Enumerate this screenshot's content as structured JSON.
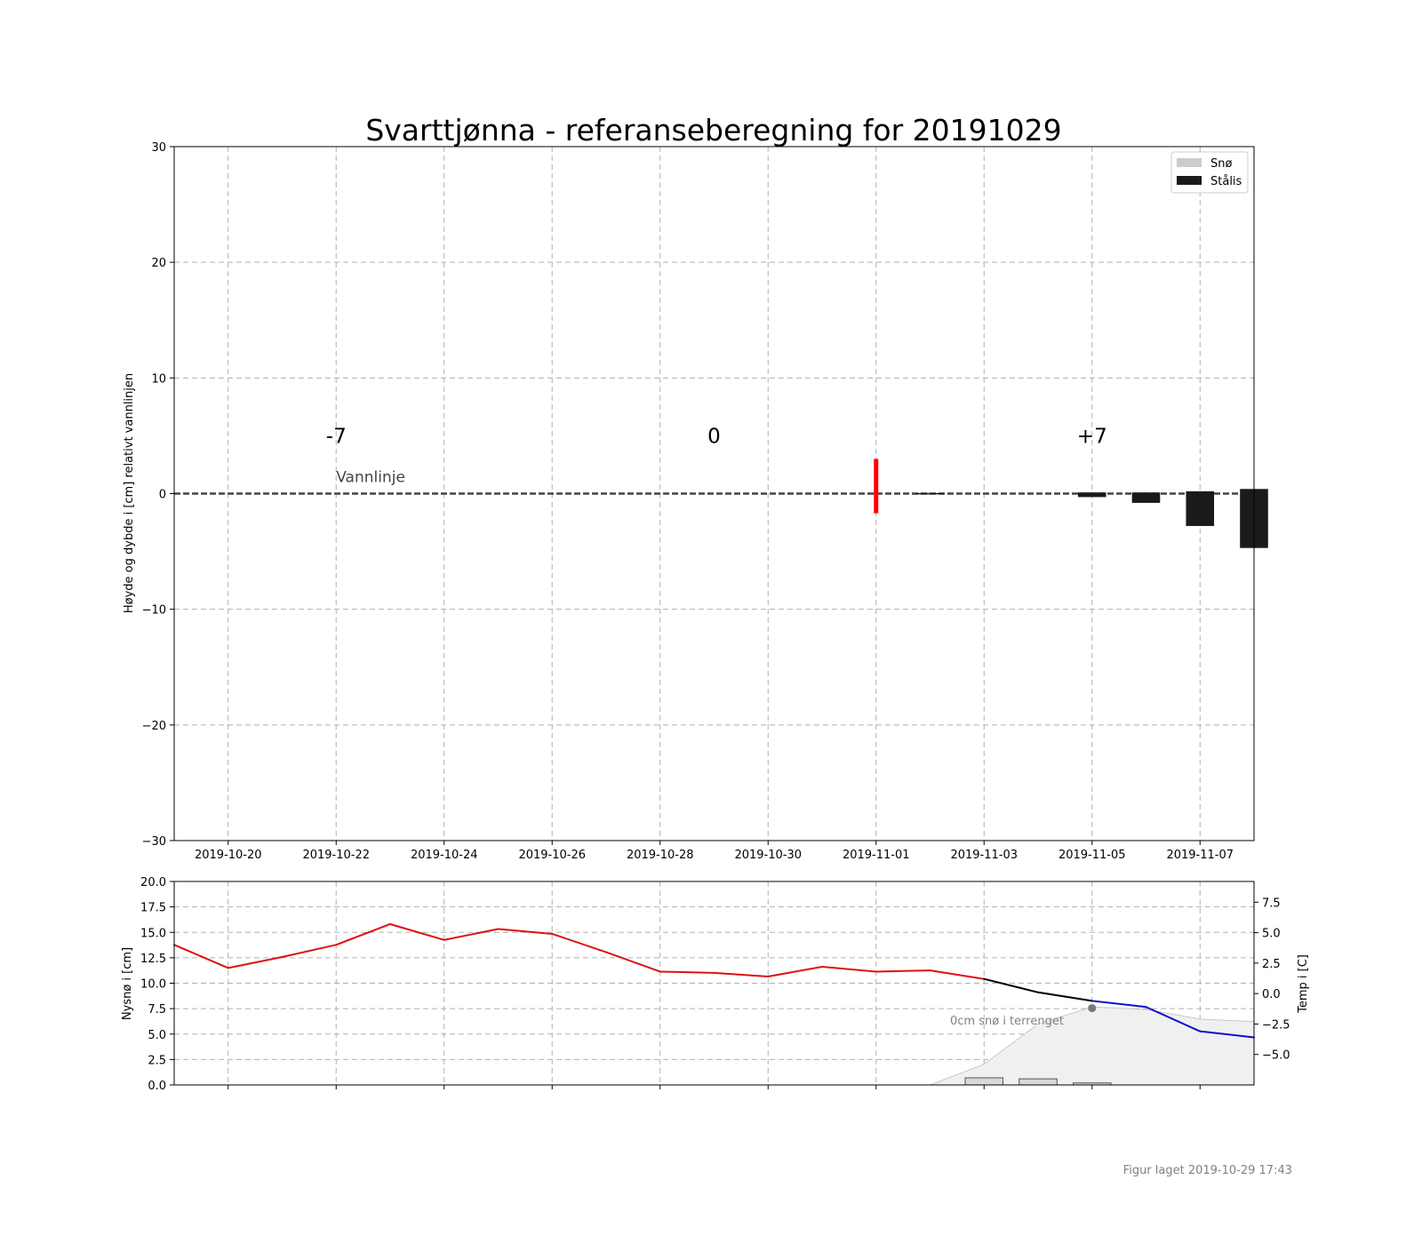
{
  "title": "Svarttjønna - referanseberegning for 20191029",
  "footer": "Figur laget 2019-10-29 17:43",
  "colors": {
    "snow": "#cccccc",
    "ice": "#1a1a1a",
    "today_marker": "#ff0000",
    "temp_observed": "#dd1111",
    "temp_forecast_warm": "#000000",
    "temp_forecast_cold": "#1010cc",
    "terrain_snow_fill": "#f0f0f0",
    "grid": "#b0b0b0"
  },
  "chart_data": [
    {
      "type": "bar",
      "ylabel": "Høyde og dybde i [cm] relativt vannlinjen",
      "ylim": [
        -30,
        30
      ],
      "yticks": [
        30,
        20,
        10,
        0,
        -10,
        -20,
        -30
      ],
      "ytick_labels": [
        "30",
        "20",
        "10",
        "0",
        "−10",
        "−20",
        "−30"
      ],
      "xlim": [
        "2019-10-19",
        "2019-11-08"
      ],
      "xticks": [
        "2019-10-20",
        "2019-10-22",
        "2019-10-24",
        "2019-10-26",
        "2019-10-28",
        "2019-10-30",
        "2019-11-01",
        "2019-11-03",
        "2019-11-05",
        "2019-11-07"
      ],
      "grid": true,
      "legend_position": "top-right",
      "legend": [
        {
          "name": "Snø",
          "color": "#cccccc"
        },
        {
          "name": "Stålis",
          "color": "#1a1a1a"
        }
      ],
      "waterline": {
        "y": 0,
        "label": "Vannlinje",
        "label_x": "2019-10-22"
      },
      "day_markers": [
        {
          "label": "-7",
          "x": "2019-10-22"
        },
        {
          "label": "0",
          "x": "2019-10-29"
        },
        {
          "label": "+7",
          "x": "2019-11-05"
        }
      ],
      "today_marker": {
        "x": "2019-11-01",
        "y_top": 3,
        "y_bottom": -1.7
      },
      "series": [
        {
          "name": "Stålis",
          "bars": [
            {
              "x": "2019-11-02",
              "top": 0.05,
              "bottom": -0.05
            },
            {
              "x": "2019-11-05",
              "top": 0.1,
              "bottom": -0.3
            },
            {
              "x": "2019-11-06",
              "top": 0.1,
              "bottom": -0.8
            },
            {
              "x": "2019-11-07",
              "top": 0.2,
              "bottom": -2.8
            },
            {
              "x": "2019-11-08",
              "top": 0.4,
              "bottom": -4.7
            }
          ]
        }
      ]
    },
    {
      "type": "line",
      "ylabel": "Nysnø i [cm]",
      "ylim": [
        0,
        20
      ],
      "yticks": [
        "0.0",
        "2.5",
        "5.0",
        "7.5",
        "10.0",
        "12.5",
        "15.0",
        "17.5",
        "20.0"
      ],
      "y2label": "Temp i [C]",
      "y2lim": [
        -7.5,
        9.2
      ],
      "y2ticks": [
        "7.5",
        "5.0",
        "2.5",
        "0.0",
        "−2.5",
        "−5.0"
      ],
      "grid": true,
      "terrain_snow_label": "0cm snø i terrenget",
      "terrain_snow_point": {
        "x": "2019-11-05",
        "temp": -1.2
      },
      "terrain_snow_area": [
        {
          "x": "2019-11-02",
          "temp": -7.5
        },
        {
          "x": "2019-11-03",
          "temp": -5.8
        },
        {
          "x": "2019-11-04",
          "temp": -2.5
        },
        {
          "x": "2019-11-05",
          "temp": -1.1
        },
        {
          "x": "2019-11-06",
          "temp": -1.3
        },
        {
          "x": "2019-11-07",
          "temp": -2.1
        },
        {
          "x": "2019-11-08",
          "temp": -2.3
        }
      ],
      "new_snow_bars": [
        {
          "x": "2019-11-03",
          "value": 0.7
        },
        {
          "x": "2019-11-04",
          "value": 0.6
        },
        {
          "x": "2019-11-05",
          "value": 0.2
        }
      ],
      "temperature": [
        {
          "x": "2019-10-19",
          "temp": 4.0
        },
        {
          "x": "2019-10-20",
          "temp": 2.1
        },
        {
          "x": "2019-10-21",
          "temp": 3.0
        },
        {
          "x": "2019-10-22",
          "temp": 4.0
        },
        {
          "x": "2019-10-23",
          "temp": 5.7
        },
        {
          "x": "2019-10-24",
          "temp": 4.4
        },
        {
          "x": "2019-10-25",
          "temp": 5.3
        },
        {
          "x": "2019-10-26",
          "temp": 4.9
        },
        {
          "x": "2019-10-27",
          "temp": 3.4
        },
        {
          "x": "2019-10-28",
          "temp": 1.8
        },
        {
          "x": "2019-10-29",
          "temp": 1.7
        },
        {
          "x": "2019-10-30",
          "temp": 1.4
        },
        {
          "x": "2019-10-31",
          "temp": 2.2
        },
        {
          "x": "2019-11-01",
          "temp": 1.8
        },
        {
          "x": "2019-11-02",
          "temp": 1.9
        },
        {
          "x": "2019-11-03",
          "temp": 1.2
        },
        {
          "x": "2019-11-04",
          "temp": 0.1
        },
        {
          "x": "2019-11-05",
          "temp": -0.6
        },
        {
          "x": "2019-11-06",
          "temp": -1.1
        },
        {
          "x": "2019-11-07",
          "temp": -3.1
        },
        {
          "x": "2019-11-08",
          "temp": -3.6
        }
      ]
    }
  ]
}
